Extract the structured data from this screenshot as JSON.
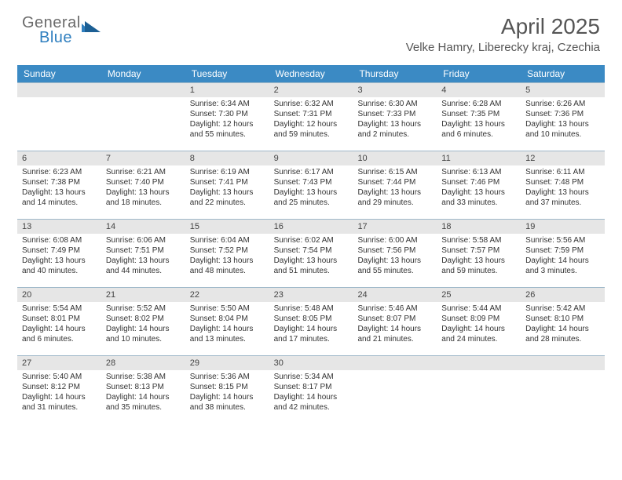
{
  "brand": {
    "part1": "General",
    "part2": "Blue"
  },
  "title": "April 2025",
  "location": "Velke Hamry, Liberecky kraj, Czechia",
  "colors": {
    "header_bar": "#3b8ac4",
    "daynum_bg": "#e6e6e6",
    "week_border": "#9fb8c9",
    "text": "#333333",
    "brand_grey": "#6b6b6b",
    "brand_blue": "#2f7fbf"
  },
  "days_of_week": [
    "Sunday",
    "Monday",
    "Tuesday",
    "Wednesday",
    "Thursday",
    "Friday",
    "Saturday"
  ],
  "weeks": [
    [
      null,
      null,
      {
        "n": "1",
        "sunrise": "Sunrise: 6:34 AM",
        "sunset": "Sunset: 7:30 PM",
        "daylight": "Daylight: 12 hours and 55 minutes."
      },
      {
        "n": "2",
        "sunrise": "Sunrise: 6:32 AM",
        "sunset": "Sunset: 7:31 PM",
        "daylight": "Daylight: 12 hours and 59 minutes."
      },
      {
        "n": "3",
        "sunrise": "Sunrise: 6:30 AM",
        "sunset": "Sunset: 7:33 PM",
        "daylight": "Daylight: 13 hours and 2 minutes."
      },
      {
        "n": "4",
        "sunrise": "Sunrise: 6:28 AM",
        "sunset": "Sunset: 7:35 PM",
        "daylight": "Daylight: 13 hours and 6 minutes."
      },
      {
        "n": "5",
        "sunrise": "Sunrise: 6:26 AM",
        "sunset": "Sunset: 7:36 PM",
        "daylight": "Daylight: 13 hours and 10 minutes."
      }
    ],
    [
      {
        "n": "6",
        "sunrise": "Sunrise: 6:23 AM",
        "sunset": "Sunset: 7:38 PM",
        "daylight": "Daylight: 13 hours and 14 minutes."
      },
      {
        "n": "7",
        "sunrise": "Sunrise: 6:21 AM",
        "sunset": "Sunset: 7:40 PM",
        "daylight": "Daylight: 13 hours and 18 minutes."
      },
      {
        "n": "8",
        "sunrise": "Sunrise: 6:19 AM",
        "sunset": "Sunset: 7:41 PM",
        "daylight": "Daylight: 13 hours and 22 minutes."
      },
      {
        "n": "9",
        "sunrise": "Sunrise: 6:17 AM",
        "sunset": "Sunset: 7:43 PM",
        "daylight": "Daylight: 13 hours and 25 minutes."
      },
      {
        "n": "10",
        "sunrise": "Sunrise: 6:15 AM",
        "sunset": "Sunset: 7:44 PM",
        "daylight": "Daylight: 13 hours and 29 minutes."
      },
      {
        "n": "11",
        "sunrise": "Sunrise: 6:13 AM",
        "sunset": "Sunset: 7:46 PM",
        "daylight": "Daylight: 13 hours and 33 minutes."
      },
      {
        "n": "12",
        "sunrise": "Sunrise: 6:11 AM",
        "sunset": "Sunset: 7:48 PM",
        "daylight": "Daylight: 13 hours and 37 minutes."
      }
    ],
    [
      {
        "n": "13",
        "sunrise": "Sunrise: 6:08 AM",
        "sunset": "Sunset: 7:49 PM",
        "daylight": "Daylight: 13 hours and 40 minutes."
      },
      {
        "n": "14",
        "sunrise": "Sunrise: 6:06 AM",
        "sunset": "Sunset: 7:51 PM",
        "daylight": "Daylight: 13 hours and 44 minutes."
      },
      {
        "n": "15",
        "sunrise": "Sunrise: 6:04 AM",
        "sunset": "Sunset: 7:52 PM",
        "daylight": "Daylight: 13 hours and 48 minutes."
      },
      {
        "n": "16",
        "sunrise": "Sunrise: 6:02 AM",
        "sunset": "Sunset: 7:54 PM",
        "daylight": "Daylight: 13 hours and 51 minutes."
      },
      {
        "n": "17",
        "sunrise": "Sunrise: 6:00 AM",
        "sunset": "Sunset: 7:56 PM",
        "daylight": "Daylight: 13 hours and 55 minutes."
      },
      {
        "n": "18",
        "sunrise": "Sunrise: 5:58 AM",
        "sunset": "Sunset: 7:57 PM",
        "daylight": "Daylight: 13 hours and 59 minutes."
      },
      {
        "n": "19",
        "sunrise": "Sunrise: 5:56 AM",
        "sunset": "Sunset: 7:59 PM",
        "daylight": "Daylight: 14 hours and 3 minutes."
      }
    ],
    [
      {
        "n": "20",
        "sunrise": "Sunrise: 5:54 AM",
        "sunset": "Sunset: 8:01 PM",
        "daylight": "Daylight: 14 hours and 6 minutes."
      },
      {
        "n": "21",
        "sunrise": "Sunrise: 5:52 AM",
        "sunset": "Sunset: 8:02 PM",
        "daylight": "Daylight: 14 hours and 10 minutes."
      },
      {
        "n": "22",
        "sunrise": "Sunrise: 5:50 AM",
        "sunset": "Sunset: 8:04 PM",
        "daylight": "Daylight: 14 hours and 13 minutes."
      },
      {
        "n": "23",
        "sunrise": "Sunrise: 5:48 AM",
        "sunset": "Sunset: 8:05 PM",
        "daylight": "Daylight: 14 hours and 17 minutes."
      },
      {
        "n": "24",
        "sunrise": "Sunrise: 5:46 AM",
        "sunset": "Sunset: 8:07 PM",
        "daylight": "Daylight: 14 hours and 21 minutes."
      },
      {
        "n": "25",
        "sunrise": "Sunrise: 5:44 AM",
        "sunset": "Sunset: 8:09 PM",
        "daylight": "Daylight: 14 hours and 24 minutes."
      },
      {
        "n": "26",
        "sunrise": "Sunrise: 5:42 AM",
        "sunset": "Sunset: 8:10 PM",
        "daylight": "Daylight: 14 hours and 28 minutes."
      }
    ],
    [
      {
        "n": "27",
        "sunrise": "Sunrise: 5:40 AM",
        "sunset": "Sunset: 8:12 PM",
        "daylight": "Daylight: 14 hours and 31 minutes."
      },
      {
        "n": "28",
        "sunrise": "Sunrise: 5:38 AM",
        "sunset": "Sunset: 8:13 PM",
        "daylight": "Daylight: 14 hours and 35 minutes."
      },
      {
        "n": "29",
        "sunrise": "Sunrise: 5:36 AM",
        "sunset": "Sunset: 8:15 PM",
        "daylight": "Daylight: 14 hours and 38 minutes."
      },
      {
        "n": "30",
        "sunrise": "Sunrise: 5:34 AM",
        "sunset": "Sunset: 8:17 PM",
        "daylight": "Daylight: 14 hours and 42 minutes."
      },
      null,
      null,
      null
    ]
  ]
}
